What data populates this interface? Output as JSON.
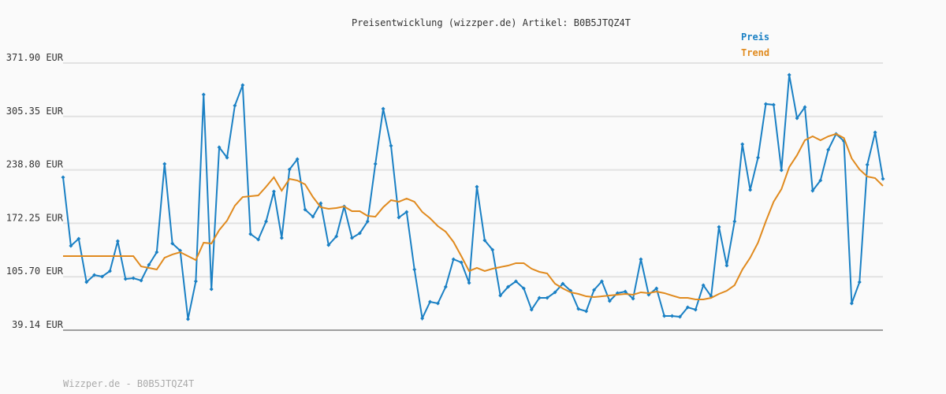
{
  "chart_data": {
    "type": "line",
    "title": "Preisentwicklung (wizzper.de) Artikel: B0B5JTQZ4T",
    "footer": "Wizzper.de - B0B5JTQZ4T",
    "ylim": [
      39.14,
      371.9
    ],
    "yticks": [
      {
        "value": 39.14,
        "label": "39.14 EUR"
      },
      {
        "value": 105.7,
        "label": "105.70 EUR"
      },
      {
        "value": 172.25,
        "label": "172.25 EUR"
      },
      {
        "value": 238.8,
        "label": "238.80 EUR"
      },
      {
        "value": 305.35,
        "label": "305.35 EUR"
      },
      {
        "value": 371.9,
        "label": "371.90 EUR"
      }
    ],
    "grid": true,
    "legend": "top-right",
    "series": [
      {
        "name": "Preis",
        "color": "#1a80c4",
        "markers": true,
        "values": [
          229.6,
          144.2,
          153.0,
          99.0,
          107.8,
          105.9,
          112.8,
          150.1,
          102.9,
          103.9,
          101.0,
          120.6,
          136.3,
          246.3,
          147.1,
          138.3,
          52.9,
          100.0,
          332.6,
          90.2,
          266.9,
          254.1,
          318.9,
          344.4,
          158.9,
          152.0,
          174.6,
          211.9,
          154.0,
          239.4,
          252.1,
          189.3,
          180.5,
          197.2,
          145.2,
          155.9,
          193.2,
          154.0,
          159.9,
          174.6,
          246.3,
          315.0,
          268.8,
          179.5,
          186.4,
          114.7,
          53.9,
          74.5,
          72.5,
          93.1,
          127.5,
          123.6,
          98.0,
          217.8,
          151.0,
          139.3,
          82.3,
          93.1,
          100.0,
          91.2,
          64.7,
          79.4,
          79.4,
          86.3,
          97.1,
          88.2,
          65.6,
          62.7,
          89.2,
          100.0,
          75.5,
          85.3,
          87.2,
          78.4,
          127.5,
          83.3,
          91.2,
          56.8,
          56.8,
          55.8,
          67.6,
          64.7,
          95.1,
          81.3,
          167.7,
          119.6,
          174.6,
          270.8,
          213.9,
          254.1,
          320.9,
          319.9,
          238.4,
          357.2,
          303.2,
          316.9,
          212.9,
          225.6,
          263.9,
          283.6,
          274.7,
          72.5,
          99.0,
          245.3,
          285.5,
          227.6
        ]
      },
      {
        "name": "Trend",
        "color": "#e08a1e",
        "markers": false,
        "values": [
          131.4,
          131.4,
          131.4,
          131.4,
          131.4,
          131.4,
          131.4,
          131.4,
          131.4,
          131.4,
          118.6,
          116.7,
          114.7,
          129.4,
          133.4,
          136.3,
          131.4,
          126.5,
          148.1,
          147.1,
          163.8,
          175.6,
          194.2,
          205.0,
          206.0,
          207.0,
          217.8,
          229.6,
          212.9,
          227.6,
          225.6,
          220.7,
          205.0,
          192.3,
          190.3,
          191.3,
          193.2,
          187.4,
          187.4,
          181.5,
          180.5,
          192.3,
          201.1,
          199.1,
          203.1,
          199.1,
          186.4,
          178.5,
          168.7,
          161.8,
          149.1,
          131.4,
          112.8,
          116.7,
          112.8,
          115.7,
          117.7,
          119.6,
          122.6,
          122.6,
          115.7,
          111.8,
          109.8,
          97.1,
          91.2,
          86.3,
          84.3,
          81.3,
          80.4,
          81.3,
          82.3,
          83.3,
          84.3,
          83.3,
          86.3,
          85.3,
          87.2,
          85.3,
          82.3,
          79.4,
          79.4,
          77.4,
          77.4,
          79.4,
          84.3,
          88.2,
          95.1,
          114.7,
          129.4,
          148.1,
          174.6,
          199.1,
          214.8,
          242.3,
          257.1,
          275.7,
          280.6,
          275.7,
          280.6,
          283.6,
          278.6,
          253.1,
          239.4,
          230.5,
          228.6,
          218.8
        ]
      }
    ]
  }
}
